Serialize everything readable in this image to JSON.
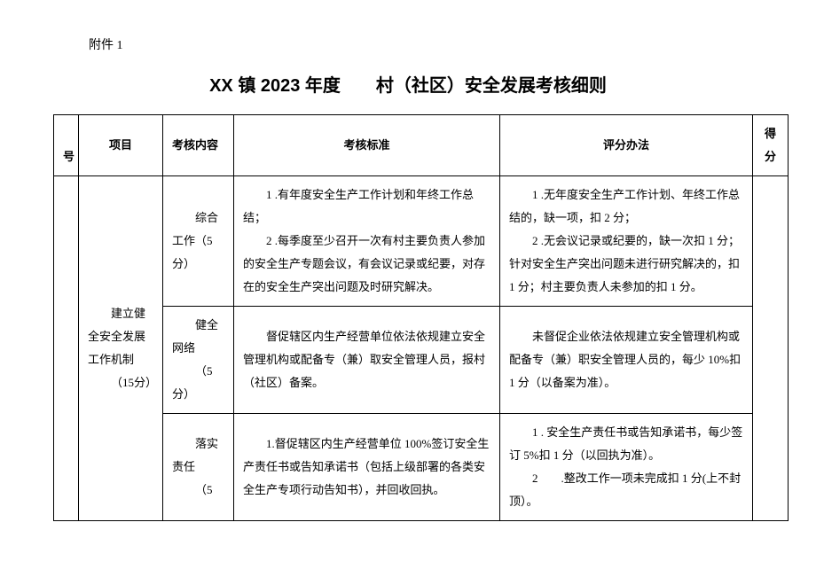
{
  "attachment_label": "附件 1",
  "title": "XX 镇 2023 年度　　村（社区）安全发展考核细则",
  "headers": {
    "num": "号",
    "project": "项目",
    "content": "考核内容",
    "standard": "考核标准",
    "method": "评分办法",
    "score": "得分"
  },
  "project": {
    "name": "建立健全安全发展工作机制",
    "points": "（15分）"
  },
  "rows": [
    {
      "content_name": "综合工作（5分）",
      "standard_1": "1 .有年度安全生产工作计划和年终工作总结；",
      "standard_2": "2 .每季度至少召开一次有村主要负责人参加的安全生产专题会议，有会议记录或纪要，对存在的安全生产突出问题及时研究解决。",
      "method_1": "1 .无年度安全生产工作计划、年终工作总结的，缺一项，扣 2 分；",
      "method_2": "2 .无会议记录或纪要的，缺一次扣 1 分；针对安全生产突出问题未进行研究解决的，扣 1 分；村主要负责人未参加的扣 1 分。"
    },
    {
      "content_name": "健全网络",
      "content_points": "（5分）",
      "standard": "督促辖区内生产经营单位依法依规建立安全管理机构或配备专（兼）取安全管理人员，报村（社区）备案。",
      "method": "未督促企业依法依规建立安全管理机构或配备专（兼）职安全管理人员的，每少 10%扣 1 分（以备案为准）。"
    },
    {
      "content_name": "落实责任",
      "content_points": "（5",
      "standard": "1.督促辖区内生产经营单位 100%签订安全生产责任书或告知承诺书（包括上级部署的各类安全生产专项行动告知书），并回收回执。",
      "method_1": "1 . 安全生产责任书或告知承诺书，每少签订 5%扣 1 分（以回执为准）。",
      "method_2": "2　　.整改工作一项未完成扣 1 分(上不封顶）。"
    }
  ]
}
